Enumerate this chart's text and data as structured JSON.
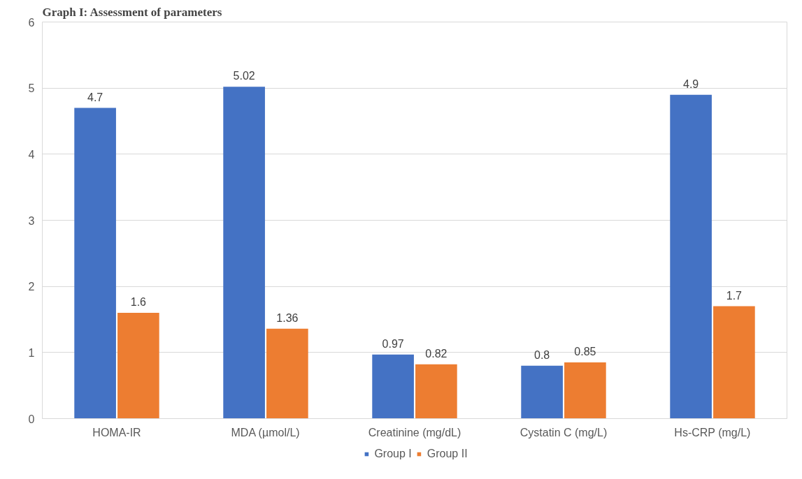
{
  "chart_data": {
    "type": "bar",
    "title": "Graph I: Assessment of parameters",
    "categories": [
      "HOMA-IR",
      "MDA (µmol/L)",
      "Creatinine (mg/dL)",
      "Cystatin C (mg/L)",
      "Hs-CRP (mg/L)"
    ],
    "series": [
      {
        "name": "Group I",
        "color": "#4472c4",
        "values": [
          4.7,
          5.02,
          0.97,
          0.8,
          4.9
        ]
      },
      {
        "name": "Group II",
        "color": "#ed7d31",
        "values": [
          1.6,
          1.36,
          0.82,
          0.85,
          1.7
        ]
      }
    ],
    "ylim": [
      0,
      6
    ],
    "yticks": [
      0,
      1,
      2,
      3,
      4,
      5,
      6
    ],
    "grid": "y",
    "legend": "bottom",
    "data_labels": true
  }
}
